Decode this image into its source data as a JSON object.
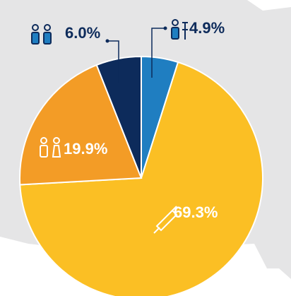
{
  "chart_data": {
    "type": "pie",
    "categories": [
      null,
      null,
      null,
      null
    ],
    "values": [
      4.9,
      69.3,
      19.9,
      6.0
    ],
    "value_labels": [
      "4.9%",
      "69.3%",
      "19.9%",
      "6.0%"
    ],
    "colors": [
      "#1f7ec1",
      "#fbbf24",
      "#f39c26",
      "#0d2b5b"
    ]
  }
}
